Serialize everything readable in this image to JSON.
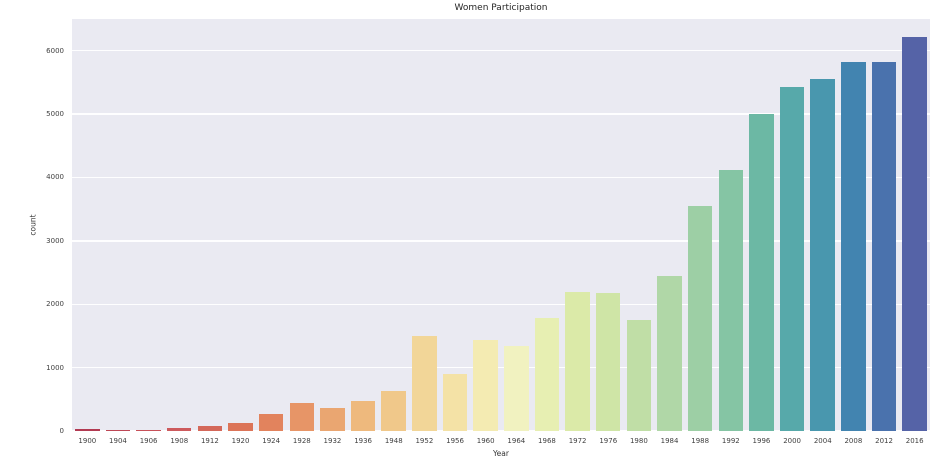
{
  "figure": {
    "background": "#ffffff",
    "plot_background": "#eaeaf2",
    "grid_color": "#ffffff",
    "tick_color": "#404040",
    "text_color": "#262626"
  },
  "chart_data": {
    "type": "bar",
    "title": "Women Participation",
    "xlabel": "Year",
    "ylabel": "count",
    "ylim": [
      0,
      6500
    ],
    "yticks": [
      0,
      1000,
      2000,
      3000,
      4000,
      5000,
      6000
    ],
    "grid": true,
    "legend": false,
    "palette": "Spectral (desaturated)",
    "categories": [
      "1900",
      "1904",
      "1906",
      "1908",
      "1912",
      "1920",
      "1924",
      "1928",
      "1932",
      "1936",
      "1948",
      "1952",
      "1956",
      "1960",
      "1964",
      "1968",
      "1972",
      "1976",
      "1980",
      "1984",
      "1988",
      "1992",
      "1996",
      "2000",
      "2004",
      "2008",
      "2012",
      "2016"
    ],
    "values": [
      33,
      16,
      11,
      47,
      87,
      134,
      261,
      437,
      369,
      468,
      628,
      1497,
      893,
      1435,
      1348,
      1777,
      2193,
      2172,
      1756,
      2447,
      3543,
      4124,
      5008,
      5431,
      5546,
      5816,
      5815,
      6223
    ],
    "bar_colors": [
      "#b23a52",
      "#bd4755",
      "#c75159",
      "#cd5a5d",
      "#d4685a",
      "#dc7458",
      "#e2835d",
      "#e79567",
      "#eaa671",
      "#eeb97d",
      "#f0c88a",
      "#f2d698",
      "#f4e2a6",
      "#f4ebb2",
      "#f1f2c0",
      "#e7efb2",
      "#dbeaa8",
      "#cfe5a6",
      "#c0dea6",
      "#b0d7a7",
      "#9dcfa5",
      "#85c5a4",
      "#6cb8a4",
      "#57a9aa",
      "#4997ae",
      "#4284b0",
      "#4a72ad",
      "#5563a7"
    ]
  }
}
